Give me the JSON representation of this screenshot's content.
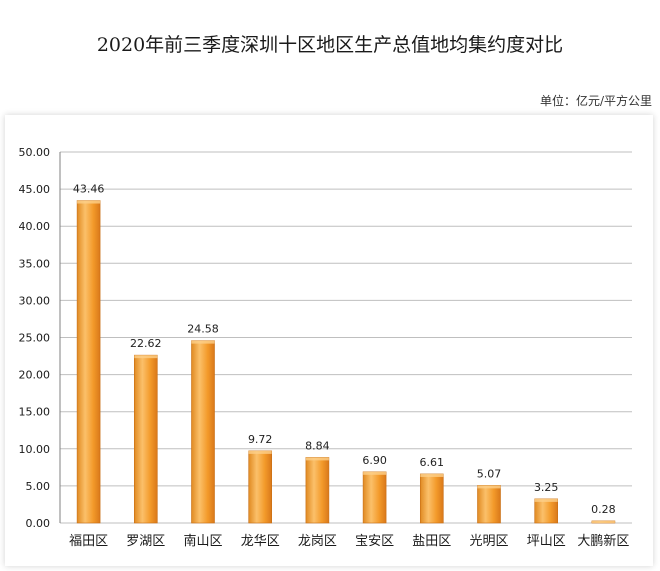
{
  "chart_data": {
    "type": "bar",
    "title": "2020年前三季度深圳十区地区生产总值地均集约度对比",
    "unit_label": "单位：亿元/平方公里",
    "categories": [
      "福田区",
      "罗湖区",
      "南山区",
      "龙华区",
      "龙岗区",
      "宝安区",
      "盐田区",
      "光明区",
      "坪山区",
      "大鹏新区"
    ],
    "values": [
      43.46,
      22.62,
      24.58,
      9.72,
      8.84,
      6.9,
      6.61,
      5.07,
      3.25,
      0.28
    ],
    "data_labels": [
      "43.46",
      "22.62",
      "24.58",
      "9.72",
      "8.84",
      "6.90",
      "6.61",
      "5.07",
      "3.25",
      "0.28"
    ],
    "yticks": [
      "0.00",
      "5.00",
      "10.00",
      "15.00",
      "20.00",
      "25.00",
      "30.00",
      "35.00",
      "40.00",
      "45.00",
      "50.00"
    ],
    "ylim": [
      0,
      50
    ],
    "grid": true,
    "colors": {
      "bar_light": "#f9b95c",
      "bar_mid": "#f39a2a",
      "bar_dark": "#d9781a",
      "grid": "#bfbfbf"
    }
  }
}
